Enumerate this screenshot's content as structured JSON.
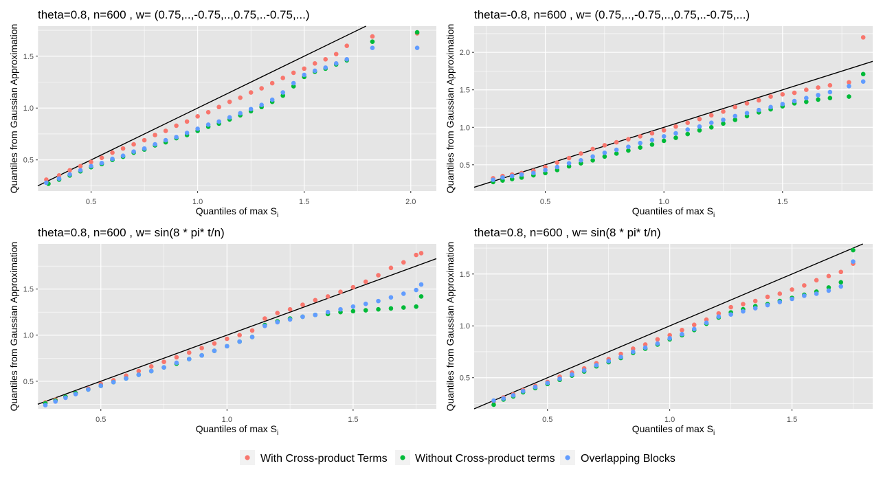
{
  "figure": {
    "series": [
      {
        "name": "With Cross-product Terms",
        "color": "#F8766D"
      },
      {
        "name": "Without Cross-product terms",
        "color": "#00BA38"
      },
      {
        "name": "Overlapping Blocks",
        "color": "#619CFF"
      }
    ],
    "panel_background": "#E5E5E5",
    "grid_color": "#FFFFFF"
  },
  "chart_data": [
    {
      "type": "scatter",
      "title": "theta=0.8, n=600 , w= (0.75,..,-0.75,..,0.75,..-0.75,...)",
      "xlabel": "Quantiles of max S",
      "xlabel_sub": "i",
      "ylabel": "Quantiles from Gaussian Approximation",
      "xlim": [
        0.25,
        2.12
      ],
      "ylim": [
        0.2,
        1.79
      ],
      "xticks": [
        0.5,
        1.0,
        1.5,
        2.0
      ],
      "xtick_labels": [
        "0.5",
        "1.0",
        "1.5",
        "2.0"
      ],
      "yticks": [
        0.5,
        1.0,
        1.5
      ],
      "ytick_labels": [
        "0.5",
        "1.0",
        "1.5"
      ],
      "reference_line": {
        "slope": 1,
        "intercept": 0
      },
      "series": [
        {
          "name": "With Cross-product Terms",
          "x": [
            0.29,
            0.35,
            0.4,
            0.45,
            0.5,
            0.55,
            0.6,
            0.65,
            0.7,
            0.75,
            0.8,
            0.85,
            0.9,
            0.95,
            1.0,
            1.05,
            1.1,
            1.15,
            1.2,
            1.25,
            1.3,
            1.35,
            1.4,
            1.45,
            1.5,
            1.55,
            1.6,
            1.65,
            1.7,
            1.82,
            2.03
          ],
          "y": [
            0.31,
            0.35,
            0.4,
            0.44,
            0.48,
            0.52,
            0.57,
            0.61,
            0.65,
            0.69,
            0.74,
            0.78,
            0.83,
            0.87,
            0.92,
            0.96,
            1.01,
            1.06,
            1.1,
            1.15,
            1.19,
            1.24,
            1.29,
            1.34,
            1.38,
            1.43,
            1.47,
            1.52,
            1.6,
            1.69,
            1.72
          ]
        },
        {
          "name": "Without Cross-product terms",
          "x": [
            0.3,
            0.35,
            0.4,
            0.45,
            0.5,
            0.55,
            0.6,
            0.65,
            0.7,
            0.75,
            0.8,
            0.85,
            0.9,
            0.95,
            1.0,
            1.05,
            1.1,
            1.15,
            1.2,
            1.25,
            1.3,
            1.35,
            1.4,
            1.45,
            1.5,
            1.55,
            1.6,
            1.65,
            1.7,
            1.82,
            2.03
          ],
          "y": [
            0.27,
            0.31,
            0.35,
            0.39,
            0.43,
            0.46,
            0.5,
            0.53,
            0.57,
            0.6,
            0.64,
            0.67,
            0.71,
            0.74,
            0.78,
            0.82,
            0.85,
            0.89,
            0.93,
            0.97,
            1.01,
            1.06,
            1.12,
            1.21,
            1.3,
            1.35,
            1.38,
            1.42,
            1.46,
            1.64,
            1.73
          ]
        },
        {
          "name": "Overlapping Blocks",
          "x": [
            0.29,
            0.35,
            0.4,
            0.45,
            0.5,
            0.55,
            0.6,
            0.65,
            0.7,
            0.75,
            0.8,
            0.85,
            0.9,
            0.95,
            1.0,
            1.05,
            1.1,
            1.15,
            1.2,
            1.25,
            1.3,
            1.35,
            1.4,
            1.45,
            1.5,
            1.55,
            1.6,
            1.65,
            1.7,
            1.82,
            2.03
          ],
          "y": [
            0.28,
            0.32,
            0.36,
            0.4,
            0.44,
            0.47,
            0.51,
            0.54,
            0.58,
            0.61,
            0.65,
            0.69,
            0.72,
            0.76,
            0.8,
            0.84,
            0.87,
            0.91,
            0.95,
            0.99,
            1.03,
            1.08,
            1.15,
            1.24,
            1.32,
            1.36,
            1.39,
            1.43,
            1.47,
            1.58,
            1.58
          ]
        }
      ]
    },
    {
      "type": "scatter",
      "title": "theta=-0.8, n=600 , w= (0.75,..,-0.75,..,0.75,..-0.75,...)",
      "xlabel": "Quantiles of max S",
      "xlabel_sub": "i",
      "ylabel": "Quantiles from Gaussian Approximation",
      "xlim": [
        0.2,
        1.88
      ],
      "ylim": [
        0.15,
        2.35
      ],
      "xticks": [
        0.5,
        1.0,
        1.5
      ],
      "xtick_labels": [
        "0.5",
        "1.0",
        "1.5"
      ],
      "yticks": [
        0.5,
        1.0,
        1.5,
        2.0
      ],
      "ytick_labels": [
        "0.5",
        "1.0",
        "1.5",
        "2.0"
      ],
      "reference_line": {
        "slope": 1,
        "intercept": 0
      },
      "series": [
        {
          "name": "With Cross-product Terms",
          "x": [
            0.28,
            0.32,
            0.36,
            0.4,
            0.45,
            0.5,
            0.55,
            0.6,
            0.65,
            0.7,
            0.75,
            0.8,
            0.85,
            0.9,
            0.95,
            1.0,
            1.05,
            1.1,
            1.15,
            1.2,
            1.25,
            1.3,
            1.35,
            1.4,
            1.45,
            1.5,
            1.55,
            1.6,
            1.65,
            1.7,
            1.78,
            1.84
          ],
          "y": [
            0.32,
            0.35,
            0.37,
            0.39,
            0.42,
            0.47,
            0.53,
            0.59,
            0.65,
            0.71,
            0.76,
            0.8,
            0.84,
            0.88,
            0.92,
            0.96,
            1.01,
            1.06,
            1.11,
            1.16,
            1.21,
            1.27,
            1.32,
            1.36,
            1.41,
            1.44,
            1.46,
            1.5,
            1.53,
            1.56,
            1.6,
            2.2
          ]
        },
        {
          "name": "Without Cross-product terms",
          "x": [
            0.28,
            0.32,
            0.36,
            0.4,
            0.45,
            0.5,
            0.55,
            0.6,
            0.65,
            0.7,
            0.75,
            0.8,
            0.85,
            0.9,
            0.95,
            1.0,
            1.05,
            1.1,
            1.15,
            1.2,
            1.25,
            1.3,
            1.35,
            1.4,
            1.45,
            1.5,
            1.55,
            1.6,
            1.65,
            1.7,
            1.78,
            1.84
          ],
          "y": [
            0.27,
            0.29,
            0.31,
            0.33,
            0.36,
            0.39,
            0.43,
            0.48,
            0.52,
            0.56,
            0.61,
            0.65,
            0.69,
            0.73,
            0.77,
            0.82,
            0.86,
            0.91,
            0.96,
            1.0,
            1.05,
            1.1,
            1.15,
            1.2,
            1.24,
            1.28,
            1.32,
            1.34,
            1.37,
            1.39,
            1.41,
            1.71
          ]
        },
        {
          "name": "Overlapping Blocks",
          "x": [
            0.28,
            0.32,
            0.36,
            0.4,
            0.45,
            0.5,
            0.55,
            0.6,
            0.65,
            0.7,
            0.75,
            0.8,
            0.85,
            0.9,
            0.95,
            1.0,
            1.05,
            1.1,
            1.15,
            1.2,
            1.25,
            1.3,
            1.35,
            1.4,
            1.45,
            1.5,
            1.55,
            1.6,
            1.65,
            1.7,
            1.78,
            1.84
          ],
          "y": [
            0.3,
            0.33,
            0.35,
            0.37,
            0.39,
            0.43,
            0.47,
            0.52,
            0.56,
            0.61,
            0.66,
            0.7,
            0.74,
            0.79,
            0.83,
            0.88,
            0.92,
            0.97,
            1.01,
            1.06,
            1.1,
            1.15,
            1.19,
            1.23,
            1.27,
            1.31,
            1.35,
            1.39,
            1.43,
            1.47,
            1.55,
            1.61
          ]
        }
      ]
    },
    {
      "type": "scatter",
      "title": "theta=0.8, n=600 , w= sin(8 * pi* t/n)",
      "xlabel": "Quantiles of max S",
      "xlabel_sub": "i",
      "ylabel": "Quantiles from Gaussian Approximation",
      "xlim": [
        0.25,
        1.83
      ],
      "ylim": [
        0.2,
        1.99
      ],
      "xticks": [
        0.5,
        1.0,
        1.5
      ],
      "xtick_labels": [
        "0.5",
        "1.0",
        "1.5"
      ],
      "yticks": [
        0.5,
        1.0,
        1.5
      ],
      "ytick_labels": [
        "0.5",
        "1.0",
        "1.5"
      ],
      "reference_line": {
        "slope": 1,
        "intercept": 0
      },
      "series": [
        {
          "name": "With Cross-product Terms",
          "x": [
            0.28,
            0.32,
            0.36,
            0.4,
            0.45,
            0.5,
            0.55,
            0.6,
            0.65,
            0.7,
            0.75,
            0.8,
            0.85,
            0.9,
            0.95,
            1.0,
            1.05,
            1.1,
            1.15,
            1.2,
            1.25,
            1.3,
            1.35,
            1.4,
            1.45,
            1.5,
            1.55,
            1.6,
            1.65,
            1.7,
            1.75,
            1.77
          ],
          "y": [
            0.27,
            0.3,
            0.33,
            0.37,
            0.42,
            0.47,
            0.51,
            0.56,
            0.61,
            0.66,
            0.71,
            0.76,
            0.81,
            0.86,
            0.91,
            0.96,
            1.0,
            1.05,
            1.18,
            1.24,
            1.28,
            1.33,
            1.38,
            1.42,
            1.47,
            1.52,
            1.58,
            1.65,
            1.73,
            1.79,
            1.87,
            1.89
          ]
        },
        {
          "name": "Without Cross-product terms",
          "x": [
            0.28,
            0.32,
            0.36,
            0.4,
            0.45,
            0.5,
            0.55,
            0.6,
            0.65,
            0.7,
            0.75,
            0.8,
            0.85,
            0.9,
            0.95,
            1.0,
            1.05,
            1.1,
            1.15,
            1.2,
            1.25,
            1.3,
            1.35,
            1.4,
            1.45,
            1.5,
            1.55,
            1.6,
            1.65,
            1.7,
            1.75,
            1.77
          ],
          "y": [
            0.26,
            0.29,
            0.33,
            0.37,
            0.41,
            0.45,
            0.49,
            0.53,
            0.57,
            0.61,
            0.65,
            0.69,
            0.74,
            0.78,
            0.83,
            0.88,
            0.93,
            0.98,
            1.11,
            1.15,
            1.18,
            1.2,
            1.22,
            1.23,
            1.25,
            1.26,
            1.27,
            1.28,
            1.29,
            1.3,
            1.31,
            1.42
          ]
        },
        {
          "name": "Overlapping Blocks",
          "x": [
            0.28,
            0.32,
            0.36,
            0.4,
            0.45,
            0.5,
            0.55,
            0.6,
            0.65,
            0.7,
            0.75,
            0.8,
            0.85,
            0.9,
            0.95,
            1.0,
            1.05,
            1.1,
            1.15,
            1.2,
            1.25,
            1.3,
            1.35,
            1.4,
            1.45,
            1.5,
            1.55,
            1.6,
            1.65,
            1.7,
            1.75,
            1.77
          ],
          "y": [
            0.24,
            0.28,
            0.32,
            0.36,
            0.41,
            0.45,
            0.49,
            0.53,
            0.57,
            0.61,
            0.65,
            0.7,
            0.74,
            0.78,
            0.83,
            0.88,
            0.93,
            0.98,
            1.1,
            1.14,
            1.17,
            1.2,
            1.22,
            1.25,
            1.28,
            1.31,
            1.34,
            1.37,
            1.41,
            1.45,
            1.49,
            1.55
          ]
        }
      ]
    },
    {
      "type": "scatter",
      "title": "theta=0.8, n=600 , w= sin(8 * pi* t/n)",
      "xlabel": "Quantiles of max S",
      "xlabel_sub": "i",
      "ylabel": "Quantiles from Gaussian Approximation",
      "xlim": [
        0.2,
        1.83
      ],
      "ylim": [
        0.2,
        1.79
      ],
      "xticks": [
        0.5,
        1.0,
        1.5
      ],
      "xtick_labels": [
        "0.5",
        "1.0",
        "1.5"
      ],
      "yticks": [
        0.5,
        1.0,
        1.5
      ],
      "ytick_labels": [
        "0.5",
        "1.0",
        "1.5"
      ],
      "reference_line": {
        "slope": 1,
        "intercept": 0
      },
      "series": [
        {
          "name": "With Cross-product Terms",
          "x": [
            0.28,
            0.32,
            0.36,
            0.4,
            0.45,
            0.5,
            0.55,
            0.6,
            0.65,
            0.7,
            0.75,
            0.8,
            0.85,
            0.9,
            0.95,
            1.0,
            1.05,
            1.1,
            1.15,
            1.2,
            1.25,
            1.3,
            1.35,
            1.4,
            1.45,
            1.5,
            1.55,
            1.6,
            1.65,
            1.7,
            1.75
          ],
          "y": [
            0.27,
            0.31,
            0.34,
            0.38,
            0.42,
            0.46,
            0.51,
            0.55,
            0.59,
            0.64,
            0.68,
            0.73,
            0.78,
            0.82,
            0.87,
            0.91,
            0.96,
            1.01,
            1.06,
            1.12,
            1.18,
            1.21,
            1.24,
            1.28,
            1.31,
            1.35,
            1.39,
            1.44,
            1.48,
            1.52,
            1.6
          ]
        },
        {
          "name": "Without Cross-product terms",
          "x": [
            0.28,
            0.32,
            0.36,
            0.4,
            0.45,
            0.5,
            0.55,
            0.6,
            0.65,
            0.7,
            0.75,
            0.8,
            0.85,
            0.9,
            0.95,
            1.0,
            1.05,
            1.1,
            1.15,
            1.2,
            1.25,
            1.3,
            1.35,
            1.4,
            1.45,
            1.5,
            1.55,
            1.6,
            1.65,
            1.7,
            1.75
          ],
          "y": [
            0.24,
            0.29,
            0.32,
            0.36,
            0.4,
            0.44,
            0.48,
            0.52,
            0.56,
            0.61,
            0.65,
            0.69,
            0.74,
            0.78,
            0.82,
            0.87,
            0.91,
            0.96,
            1.02,
            1.08,
            1.13,
            1.16,
            1.19,
            1.21,
            1.24,
            1.27,
            1.3,
            1.33,
            1.37,
            1.42,
            1.73
          ]
        },
        {
          "name": "Overlapping Blocks",
          "x": [
            0.28,
            0.32,
            0.36,
            0.4,
            0.45,
            0.5,
            0.55,
            0.6,
            0.65,
            0.7,
            0.75,
            0.8,
            0.85,
            0.9,
            0.95,
            1.0,
            1.05,
            1.1,
            1.15,
            1.2,
            1.25,
            1.3,
            1.35,
            1.4,
            1.45,
            1.5,
            1.55,
            1.6,
            1.65,
            1.7,
            1.75
          ],
          "y": [
            0.28,
            0.3,
            0.33,
            0.37,
            0.41,
            0.45,
            0.49,
            0.53,
            0.57,
            0.62,
            0.66,
            0.7,
            0.75,
            0.79,
            0.83,
            0.88,
            0.92,
            0.97,
            1.03,
            1.09,
            1.11,
            1.14,
            1.17,
            1.2,
            1.23,
            1.26,
            1.29,
            1.31,
            1.34,
            1.38,
            1.62
          ]
        }
      ]
    }
  ]
}
